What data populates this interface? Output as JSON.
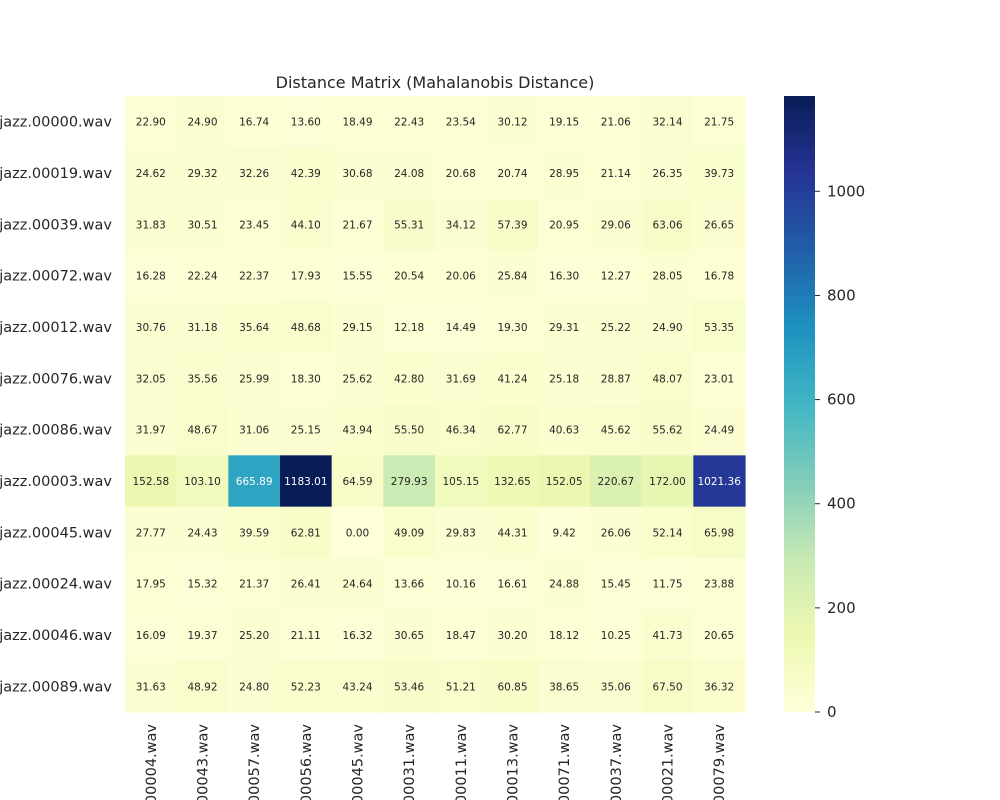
{
  "chart_data": {
    "type": "heatmap",
    "title": "Distance Matrix (Mahalanobis Distance)",
    "rows": [
      "jazz.00000.wav",
      "jazz.00019.wav",
      "jazz.00039.wav",
      "jazz.00072.wav",
      "jazz.00012.wav",
      "jazz.00076.wav",
      "jazz.00086.wav",
      "jazz.00003.wav",
      "jazz.00045.wav",
      "jazz.00024.wav",
      "jazz.00046.wav",
      "jazz.00089.wav"
    ],
    "columns": [
      "00004.wav",
      "00043.wav",
      "00057.wav",
      "00056.wav",
      "00045.wav",
      "00031.wav",
      "00011.wav",
      "00013.wav",
      "00071.wav",
      "00037.wav",
      "00021.wav",
      "00079.wav"
    ],
    "values": [
      [
        22.9,
        24.9,
        16.74,
        13.6,
        18.49,
        22.43,
        23.54,
        30.12,
        19.15,
        21.06,
        32.14,
        21.75
      ],
      [
        24.62,
        29.32,
        32.26,
        42.39,
        30.68,
        24.08,
        20.68,
        20.74,
        28.95,
        21.14,
        26.35,
        39.73
      ],
      [
        31.83,
        30.51,
        23.45,
        44.1,
        21.67,
        55.31,
        34.12,
        57.39,
        20.95,
        29.06,
        63.06,
        26.65
      ],
      [
        16.28,
        22.24,
        22.37,
        17.93,
        15.55,
        20.54,
        20.06,
        25.84,
        16.3,
        12.27,
        28.05,
        16.78
      ],
      [
        30.76,
        31.18,
        35.64,
        48.68,
        29.15,
        12.18,
        14.49,
        19.3,
        29.31,
        25.22,
        24.9,
        53.35
      ],
      [
        32.05,
        35.56,
        25.99,
        18.3,
        25.62,
        42.8,
        31.69,
        41.24,
        25.18,
        28.87,
        48.07,
        23.01
      ],
      [
        31.97,
        48.67,
        31.06,
        25.15,
        43.94,
        55.5,
        46.34,
        62.77,
        40.63,
        45.62,
        55.62,
        24.49
      ],
      [
        152.58,
        103.1,
        665.89,
        1183.01,
        64.59,
        279.93,
        105.15,
        132.65,
        152.05,
        220.67,
        172.0,
        1021.36
      ],
      [
        27.77,
        24.43,
        39.59,
        62.81,
        0.0,
        49.09,
        29.83,
        44.31,
        9.42,
        26.06,
        52.14,
        65.98
      ],
      [
        17.95,
        15.32,
        21.37,
        26.41,
        24.64,
        13.66,
        10.16,
        16.61,
        24.88,
        15.45,
        11.75,
        23.88
      ],
      [
        16.09,
        19.37,
        25.2,
        21.11,
        16.32,
        30.65,
        18.47,
        30.2,
        18.12,
        10.25,
        41.73,
        20.65
      ],
      [
        31.63,
        48.92,
        24.8,
        52.23,
        43.24,
        53.46,
        51.21,
        60.85,
        38.65,
        35.06,
        67.5,
        36.32
      ]
    ],
    "value_format": "2 decimals",
    "colormap": "YlGnBu",
    "vmin": 0,
    "vmax": 1183.01,
    "colorbar_ticks": [
      0,
      200,
      400,
      600,
      800,
      1000
    ],
    "grid": false
  }
}
